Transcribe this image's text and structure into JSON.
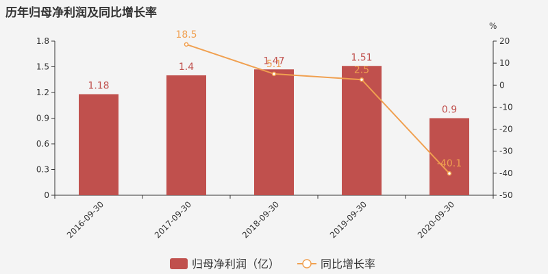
{
  "chart_data": {
    "type": "bar",
    "title": "历年归母净利润及同比增长率",
    "categories": [
      "2016-09-30",
      "2017-09-30",
      "2018-09-30",
      "2019-09-30",
      "2020-09-30"
    ],
    "series": [
      {
        "name": "归母净利润（亿）",
        "type": "bar",
        "axis": "left",
        "color": "#c0504d",
        "values": [
          1.18,
          1.4,
          1.47,
          1.51,
          0.9
        ],
        "labels": [
          "1.18",
          "1.4",
          "1.47",
          "1.51",
          "0.9"
        ]
      },
      {
        "name": "同比增长率",
        "type": "line",
        "axis": "right",
        "color": "#f0a050",
        "values": [
          null,
          18.5,
          5.1,
          2.5,
          -40.1
        ],
        "labels": [
          "",
          "18.5",
          "5.1",
          "2.5",
          "-40.1"
        ]
      }
    ],
    "y_left": {
      "ylim": [
        0,
        1.8
      ],
      "ticks": [
        "0",
        "0.3",
        "0.6",
        "0.9",
        "1.2",
        "1.5",
        "1.8"
      ]
    },
    "y_right": {
      "ylim": [
        -50,
        20
      ],
      "unit": "%",
      "ticks": [
        "-50",
        "-40",
        "-30",
        "-20",
        "-10",
        "0",
        "10",
        "20"
      ]
    },
    "grid": false,
    "legend_position": "bottom-center"
  }
}
